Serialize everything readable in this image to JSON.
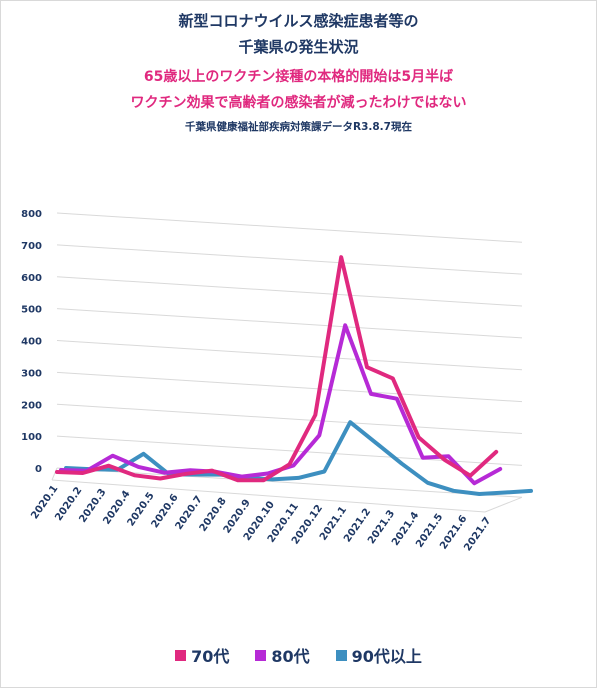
{
  "titles": {
    "line1": "新型コロナウイルス感染症患者等の",
    "line2": "千葉県の発生状況",
    "line3": "65歳以上のワクチン接種の本格的開始は5月半ば",
    "line4": "ワクチン効果で高齢者の感染者が減ったわけではない",
    "source": "千葉県健康福祉部疾病対策課データR3.8.7現在"
  },
  "chart_data": {
    "type": "line",
    "style": "3d-perspective",
    "categories": [
      "2020.1",
      "2020.2",
      "2020.3",
      "2020.4",
      "2020.5",
      "2020.6",
      "2020.7",
      "2020.8",
      "2020.9",
      "2020.10",
      "2020.11",
      "2020.12",
      "2021.1",
      "2021.2",
      "2021.3",
      "2021.4",
      "2021.5",
      "2021.6",
      "2021.7"
    ],
    "y_ticks": [
      0,
      100,
      200,
      300,
      400,
      500,
      600,
      700,
      800
    ],
    "ylim": [
      0,
      800
    ],
    "grid": true,
    "legend_position": "bottom",
    "series": [
      {
        "name": "70代",
        "color": "#e0297f",
        "values": [
          0,
          2,
          30,
          5,
          0,
          20,
          35,
          10,
          15,
          70,
          230,
          730,
          390,
          360,
          180,
          115,
          70,
          150,
          null
        ]
      },
      {
        "name": "80代",
        "color": "#b62ad6",
        "values": [
          0,
          3,
          55,
          25,
          12,
          25,
          25,
          15,
          30,
          60,
          160,
          510,
          300,
          290,
          110,
          120,
          40,
          90,
          null
        ]
      },
      {
        "name": "90代以上",
        "color": "#3d8fc0",
        "values": [
          0,
          1,
          5,
          60,
          0,
          5,
          10,
          5,
          5,
          15,
          40,
          200,
          140,
          80,
          25,
          5,
          0,
          10,
          20
        ]
      }
    ]
  }
}
